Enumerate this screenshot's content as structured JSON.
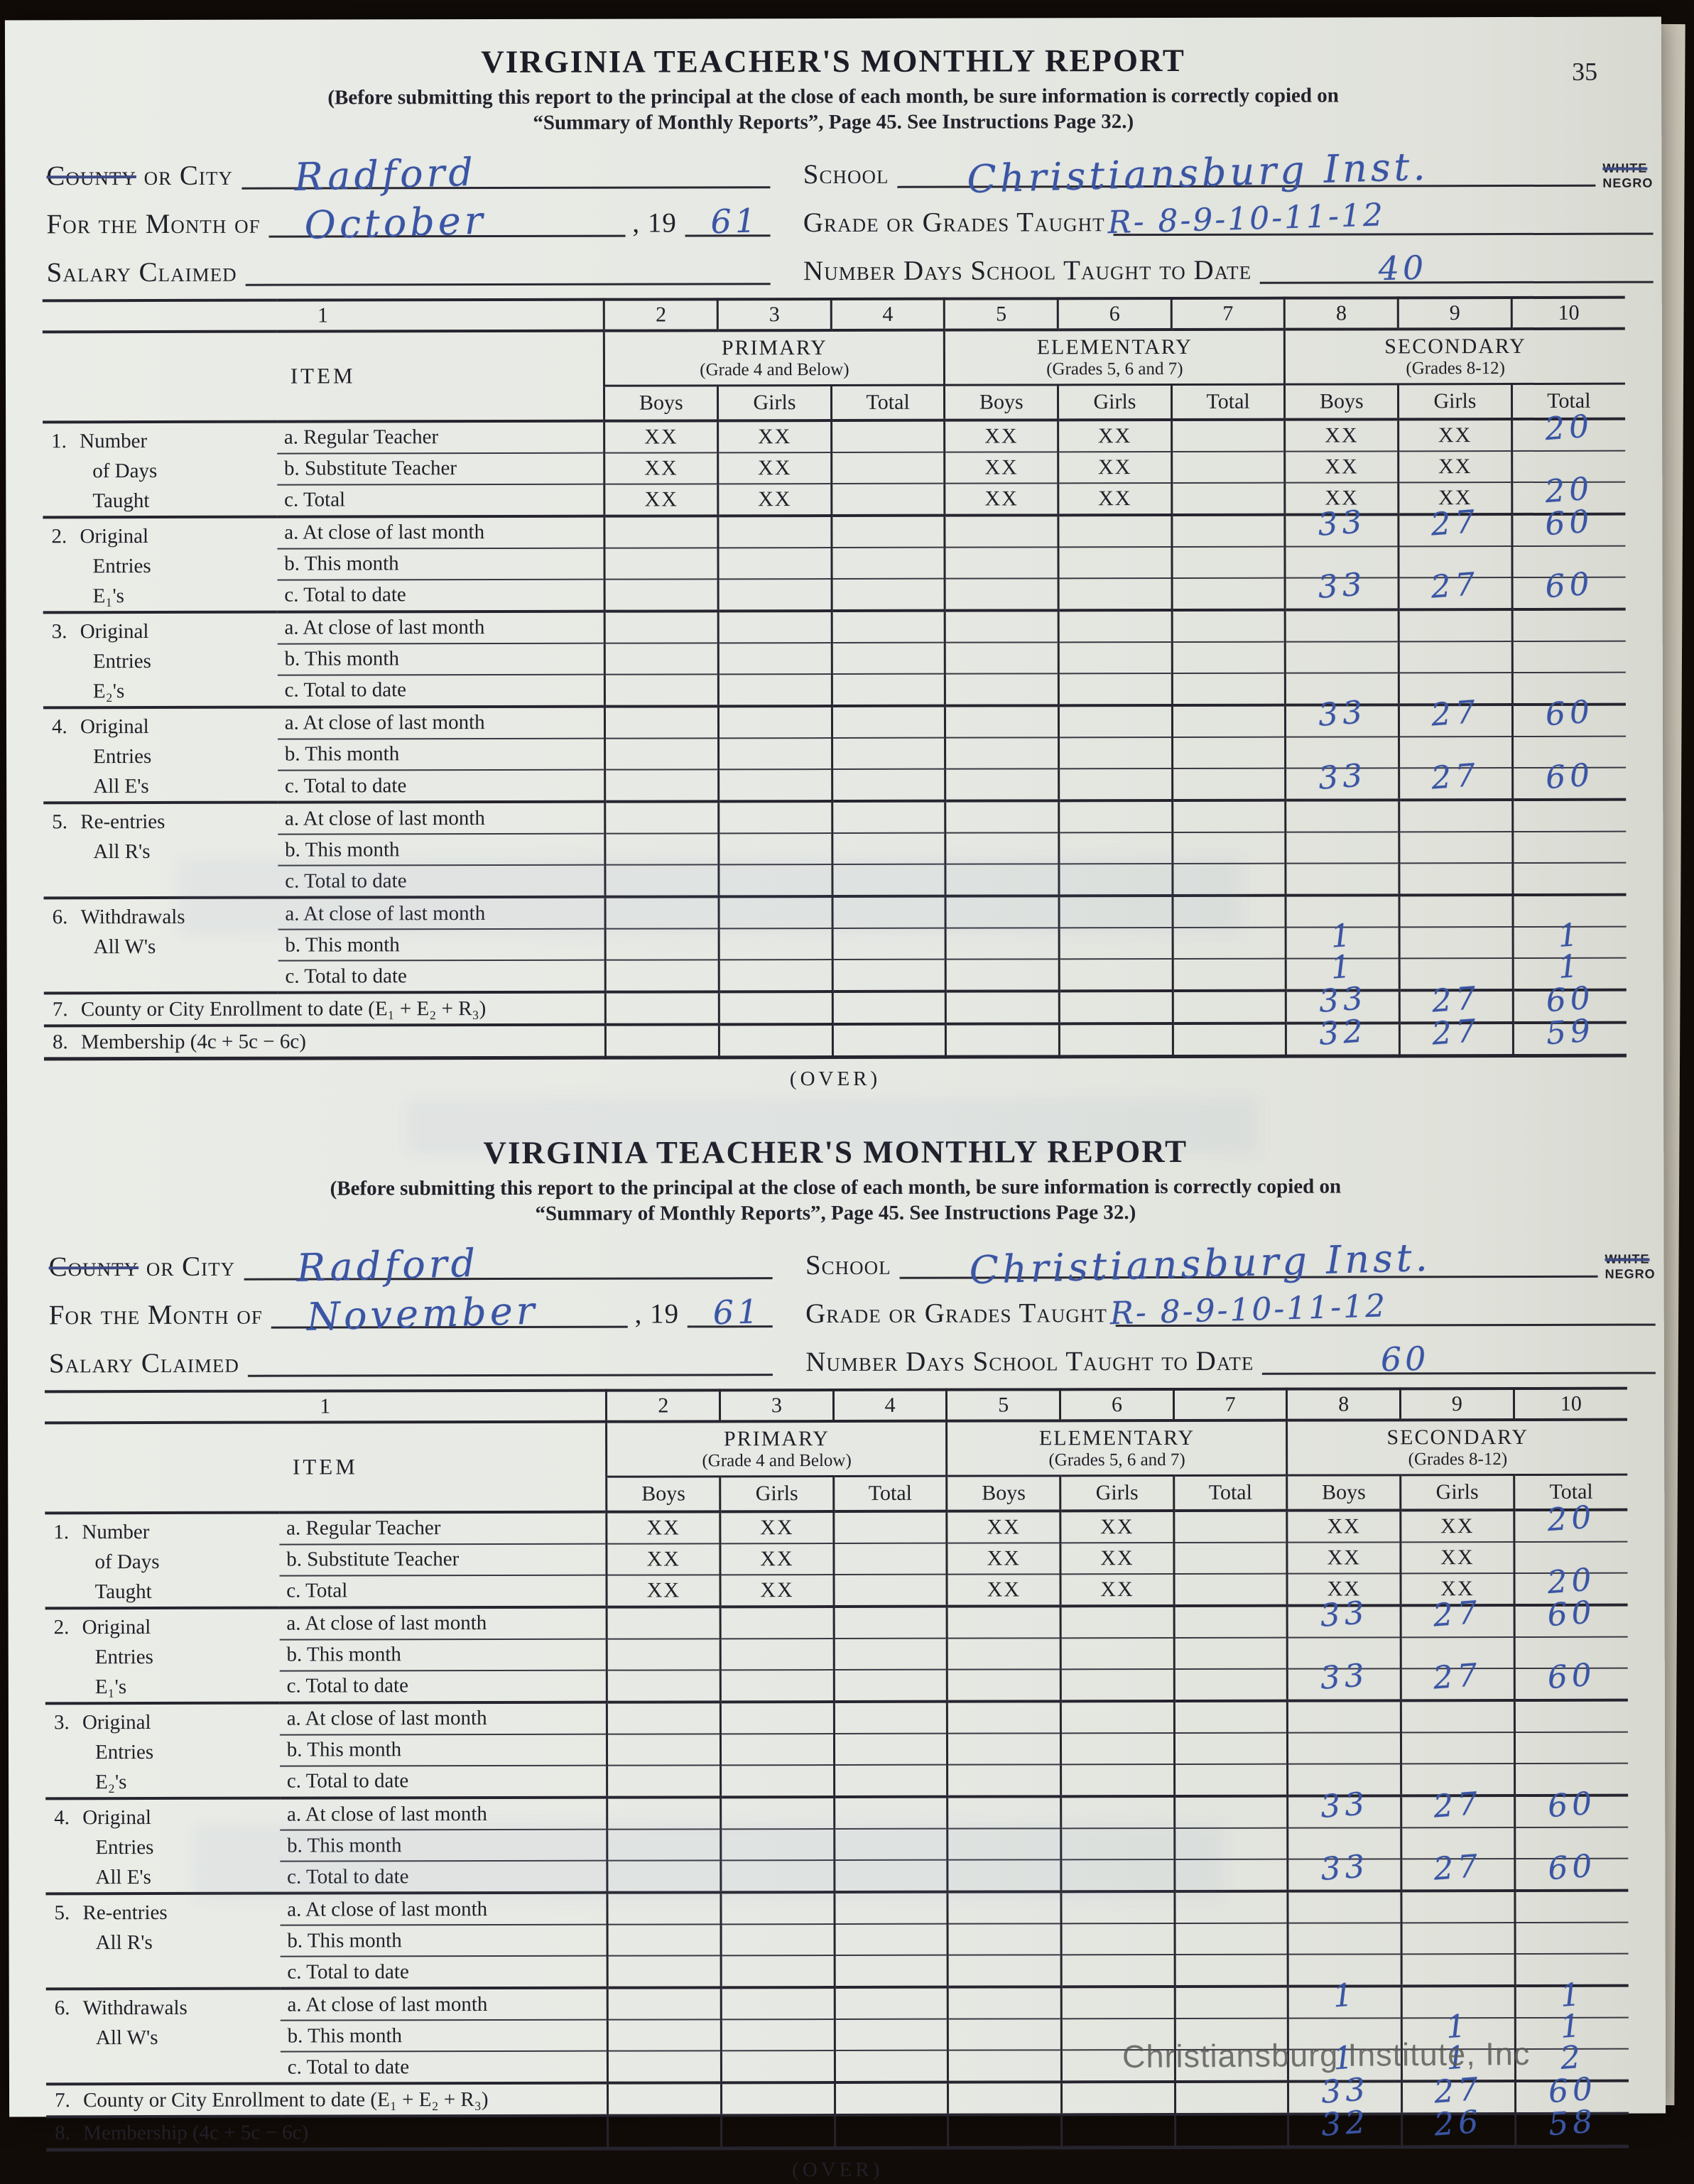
{
  "page": {
    "number": "35",
    "over_label": "(OVER)",
    "watermark": "Christiansburg Institute, Inc"
  },
  "form_common": {
    "title": "VIRGINIA TEACHER'S MONTHLY REPORT",
    "instr1": "(Before submitting this report to the principal at the close of each month, be sure information is correctly copied on",
    "instr2": "“Summary of Monthly Reports”, Page 45.  See Instructions Page 32.)",
    "fields": {
      "county_struck": "County",
      "county_rest": "or City",
      "month_label": "For the Month of",
      "year_prefix": ", 19",
      "salary_label": "Salary Claimed",
      "school_label": "School",
      "race_white": "White",
      "race_negro": "Negro",
      "grades_label": "Grade or Grades Taught",
      "days_label": "Number Days School Taught to Date"
    },
    "table": {
      "col_numbers": [
        "1",
        "2",
        "3",
        "4",
        "5",
        "6",
        "7",
        "8",
        "9",
        "10"
      ],
      "item_header": "ITEM",
      "groups": [
        {
          "name": "PRIMARY",
          "sub": "(Grade 4 and Below)"
        },
        {
          "name": "ELEMENTARY",
          "sub": "(Grades 5, 6 and 7)"
        },
        {
          "name": "SECONDARY",
          "sub": "(Grades 8-12)"
        }
      ],
      "sub_headers": [
        "Boys",
        "Girls",
        "Total"
      ],
      "rows": [
        {
          "num": "1.",
          "cat": [
            "Number",
            "of Days",
            "Taught"
          ],
          "subs": [
            "a. Regular Teacher",
            "b. Substitute Teacher",
            "c. Total"
          ]
        },
        {
          "num": "2.",
          "cat": [
            "Original",
            "Entries",
            "E₁'s"
          ],
          "subs": [
            "a. At close of last month",
            "b. This month",
            "c. Total to date"
          ]
        },
        {
          "num": "3.",
          "cat": [
            "Original",
            "Entries",
            "E₂'s"
          ],
          "subs": [
            "a. At close of last month",
            "b. This month",
            "c. Total to date"
          ]
        },
        {
          "num": "4.",
          "cat": [
            "Original",
            "Entries",
            "All E's"
          ],
          "subs": [
            "a. At close of last month",
            "b. This month",
            "c. Total to date"
          ]
        },
        {
          "num": "5.",
          "cat": [
            "Re-entries",
            "All R's"
          ],
          "subs": [
            "a. At close of last month",
            "b. This month",
            "c. Total to date"
          ]
        },
        {
          "num": "6.",
          "cat": [
            "Withdrawals",
            "All W's"
          ],
          "subs": [
            "a. At close of last month",
            "b. This month",
            "c. Total to date"
          ]
        },
        {
          "num": "7.",
          "label": "County or City Enrollment to date (E₁ + E₂ + R₃)"
        },
        {
          "num": "8.",
          "label": "Membership (4c + 5c − 6c)"
        }
      ]
    }
  },
  "forms": [
    {
      "name": "october-report",
      "county_or_city": "Radford",
      "month": "October",
      "year": "61",
      "salary": "",
      "school": "Christiansburg Inst.",
      "grades_taught": "R- 8-9-10-11-12",
      "days_taught_to_date": "40",
      "values": [
        [
          "XX",
          "XX",
          "",
          "XX",
          "XX",
          "",
          "XX",
          "XX",
          "20"
        ],
        [
          "XX",
          "XX",
          "",
          "XX",
          "XX",
          "",
          "XX",
          "XX",
          ""
        ],
        [
          "XX",
          "XX",
          "",
          "XX",
          "XX",
          "",
          "XX",
          "XX",
          "20"
        ],
        [
          "",
          "",
          "",
          "",
          "",
          "",
          "33",
          "27",
          "60"
        ],
        [
          "",
          "",
          "",
          "",
          "",
          "",
          "",
          "",
          ""
        ],
        [
          "",
          "",
          "",
          "",
          "",
          "",
          "33",
          "27",
          "60"
        ],
        [
          "",
          "",
          "",
          "",
          "",
          "",
          "",
          "",
          ""
        ],
        [
          "",
          "",
          "",
          "",
          "",
          "",
          "",
          "",
          ""
        ],
        [
          "",
          "",
          "",
          "",
          "",
          "",
          "",
          "",
          ""
        ],
        [
          "",
          "",
          "",
          "",
          "",
          "",
          "33",
          "27",
          "60"
        ],
        [
          "",
          "",
          "",
          "",
          "",
          "",
          "",
          "",
          ""
        ],
        [
          "",
          "",
          "",
          "",
          "",
          "",
          "33",
          "27",
          "60"
        ],
        [
          "",
          "",
          "",
          "",
          "",
          "",
          "",
          "",
          ""
        ],
        [
          "",
          "",
          "",
          "",
          "",
          "",
          "",
          "",
          ""
        ],
        [
          "",
          "",
          "",
          "",
          "",
          "",
          "",
          "",
          ""
        ],
        [
          "",
          "",
          "",
          "",
          "",
          "",
          "",
          "",
          ""
        ],
        [
          "",
          "",
          "",
          "",
          "",
          "",
          "1",
          "",
          "1"
        ],
        [
          "",
          "",
          "",
          "",
          "",
          "",
          "1",
          "",
          "1"
        ],
        [
          "",
          "",
          "",
          "",
          "",
          "",
          "33",
          "27",
          "60"
        ],
        [
          "",
          "",
          "",
          "",
          "",
          "",
          "32",
          "27",
          "59"
        ]
      ]
    },
    {
      "name": "november-report",
      "county_or_city": "Radford",
      "month": "November",
      "year": "61",
      "salary": "",
      "school": "Christiansburg Inst.",
      "grades_taught": "R- 8-9-10-11-12",
      "days_taught_to_date": "60",
      "values": [
        [
          "XX",
          "XX",
          "",
          "XX",
          "XX",
          "",
          "XX",
          "XX",
          "20"
        ],
        [
          "XX",
          "XX",
          "",
          "XX",
          "XX",
          "",
          "XX",
          "XX",
          ""
        ],
        [
          "XX",
          "XX",
          "",
          "XX",
          "XX",
          "",
          "XX",
          "XX",
          "20"
        ],
        [
          "",
          "",
          "",
          "",
          "",
          "",
          "33",
          "27",
          "60"
        ],
        [
          "",
          "",
          "",
          "",
          "",
          "",
          "",
          "",
          ""
        ],
        [
          "",
          "",
          "",
          "",
          "",
          "",
          "33",
          "27",
          "60"
        ],
        [
          "",
          "",
          "",
          "",
          "",
          "",
          "",
          "",
          ""
        ],
        [
          "",
          "",
          "",
          "",
          "",
          "",
          "",
          "",
          ""
        ],
        [
          "",
          "",
          "",
          "",
          "",
          "",
          "",
          "",
          ""
        ],
        [
          "",
          "",
          "",
          "",
          "",
          "",
          "33",
          "27",
          "60"
        ],
        [
          "",
          "",
          "",
          "",
          "",
          "",
          "",
          "",
          ""
        ],
        [
          "",
          "",
          "",
          "",
          "",
          "",
          "33",
          "27",
          "60"
        ],
        [
          "",
          "",
          "",
          "",
          "",
          "",
          "",
          "",
          ""
        ],
        [
          "",
          "",
          "",
          "",
          "",
          "",
          "",
          "",
          ""
        ],
        [
          "",
          "",
          "",
          "",
          "",
          "",
          "",
          "",
          ""
        ],
        [
          "",
          "",
          "",
          "",
          "",
          "",
          "1",
          "",
          "1"
        ],
        [
          "",
          "",
          "",
          "",
          "",
          "",
          "",
          "1",
          "1"
        ],
        [
          "",
          "",
          "",
          "",
          "",
          "",
          "1",
          "1",
          "2"
        ],
        [
          "",
          "",
          "",
          "",
          "",
          "",
          "33",
          "27",
          "60"
        ],
        [
          "",
          "",
          "",
          "",
          "",
          "",
          "32",
          "26",
          "58"
        ]
      ]
    }
  ]
}
